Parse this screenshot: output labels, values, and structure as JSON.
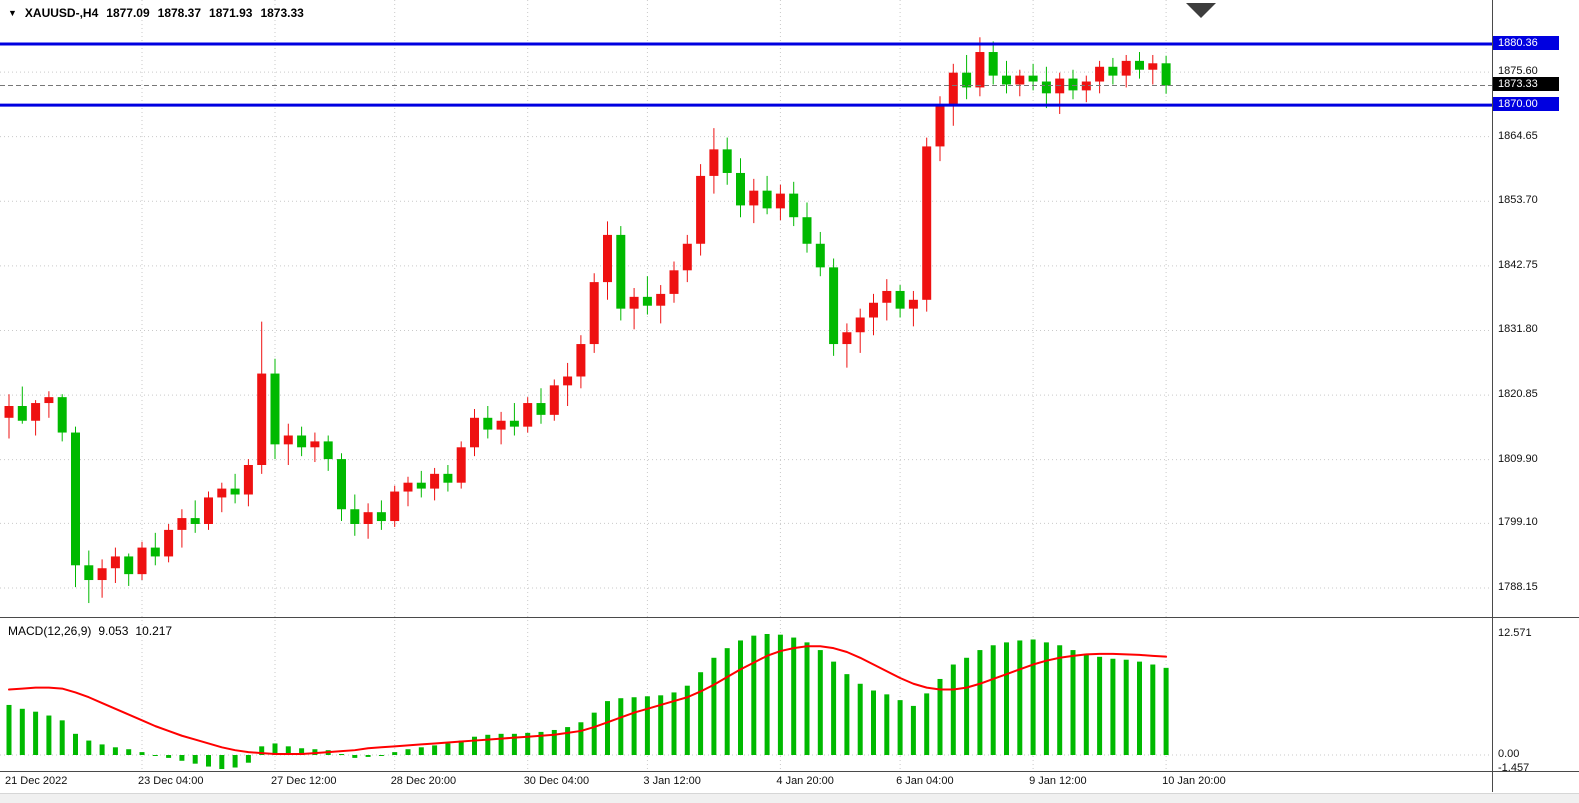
{
  "header": {
    "expand_icon": "▼",
    "symbol": "XAUUSD-,H4",
    "open": "1877.09",
    "high": "1878.37",
    "low": "1871.93",
    "close": "1873.33"
  },
  "indicator_header": {
    "name": "MACD(12,26,9)",
    "main_value": "9.053",
    "signal_value": "10.217"
  },
  "price_axis": {
    "tick_labels": [
      1875.6,
      1864.65,
      1853.7,
      1842.75,
      1831.8,
      1820.85,
      1809.9,
      1799.1,
      1788.15
    ],
    "level_labels": [
      {
        "text": "1880.36",
        "price": 1880.36
      },
      {
        "text": "1870.00",
        "price": 1870.0
      }
    ],
    "current_price_label": {
      "text": "1873.33",
      "price": 1873.33
    }
  },
  "macd_axis": {
    "max_label": "12.571",
    "max": 12.571,
    "zero_label": "0.00",
    "zero": 0,
    "min_label": "-1.457",
    "min": -1.457
  },
  "colors": {
    "up": "#ee1111",
    "down": "#00b900",
    "histogram": "#00b900",
    "signal": "#ff0000",
    "level_line": "#0000e0",
    "level_bg": "#0000e0",
    "current_bg": "#000000",
    "grid": "#c9c9c9"
  },
  "chart_data": {
    "type": "candlestick",
    "symbol": "XAUUSD-",
    "timeframe": "H4",
    "title": "XAUUSD-,H4 1877.09 1878.37 1871.93 1873.33",
    "price_axis_range": [
      1788.15,
      1880.36
    ],
    "horizontal_levels": [
      1880.36,
      1870.0
    ],
    "current_price": 1873.33,
    "x_labels": [
      {
        "label": "21 Dec 2022",
        "candle": 0
      },
      {
        "label": "23 Dec 04:00",
        "candle": 10
      },
      {
        "label": "27 Dec 12:00",
        "candle": 20
      },
      {
        "label": "28 Dec 20:00",
        "candle": 29
      },
      {
        "label": "30 Dec 04:00",
        "candle": 39
      },
      {
        "label": "3 Jan 12:00",
        "candle": 48
      },
      {
        "label": "4 Jan 20:00",
        "candle": 58
      },
      {
        "label": "6 Jan 04:00",
        "candle": 67
      },
      {
        "label": "9 Jan 12:00",
        "candle": 77
      },
      {
        "label": "10 Jan 20:00",
        "candle": 87
      }
    ],
    "candles": [
      [
        1817.0,
        1821.0,
        1813.5,
        1819.0
      ],
      [
        1819.0,
        1822.3,
        1816.0,
        1816.5
      ],
      [
        1816.5,
        1820.0,
        1814.0,
        1819.5
      ],
      [
        1819.5,
        1821.5,
        1817.0,
        1820.5
      ],
      [
        1820.5,
        1821.0,
        1813.0,
        1814.5
      ],
      [
        1814.5,
        1815.5,
        1788.3,
        1792.0
      ],
      [
        1792.0,
        1794.5,
        1785.6,
        1789.5
      ],
      [
        1789.5,
        1793.0,
        1786.5,
        1791.5
      ],
      [
        1791.5,
        1795.0,
        1789.0,
        1793.5
      ],
      [
        1793.5,
        1794.0,
        1788.5,
        1790.5
      ],
      [
        1790.5,
        1796.0,
        1789.5,
        1795.0
      ],
      [
        1795.0,
        1797.5,
        1792.0,
        1793.5
      ],
      [
        1793.5,
        1799.0,
        1792.5,
        1798.0
      ],
      [
        1798.0,
        1801.5,
        1795.0,
        1800.0
      ],
      [
        1800.0,
        1803.0,
        1797.5,
        1799.0
      ],
      [
        1799.0,
        1804.5,
        1798.0,
        1803.5
      ],
      [
        1803.5,
        1806.0,
        1801.0,
        1805.0
      ],
      [
        1805.0,
        1807.5,
        1802.5,
        1804.0
      ],
      [
        1804.0,
        1810.0,
        1802.0,
        1809.0
      ],
      [
        1809.0,
        1833.3,
        1807.5,
        1824.5
      ],
      [
        1824.5,
        1827.0,
        1810.0,
        1812.5
      ],
      [
        1812.5,
        1816.0,
        1809.0,
        1814.0
      ],
      [
        1814.0,
        1815.5,
        1810.5,
        1812.0
      ],
      [
        1812.0,
        1814.5,
        1809.5,
        1813.0
      ],
      [
        1813.0,
        1814.0,
        1808.0,
        1810.0
      ],
      [
        1810.0,
        1811.0,
        1799.5,
        1801.5
      ],
      [
        1801.5,
        1804.0,
        1797.0,
        1799.0
      ],
      [
        1799.0,
        1802.5,
        1796.5,
        1801.0
      ],
      [
        1801.0,
        1803.0,
        1798.0,
        1799.5
      ],
      [
        1799.5,
        1805.5,
        1798.5,
        1804.5
      ],
      [
        1804.5,
        1807.0,
        1802.0,
        1806.0
      ],
      [
        1806.0,
        1808.0,
        1803.5,
        1805.0
      ],
      [
        1805.0,
        1808.5,
        1803.0,
        1807.5
      ],
      [
        1807.5,
        1809.0,
        1804.5,
        1806.0
      ],
      [
        1806.0,
        1813.0,
        1805.0,
        1812.0
      ],
      [
        1812.0,
        1818.5,
        1810.5,
        1817.0
      ],
      [
        1817.0,
        1819.0,
        1813.5,
        1815.0
      ],
      [
        1815.0,
        1818.0,
        1812.5,
        1816.5
      ],
      [
        1816.5,
        1819.5,
        1814.0,
        1815.5
      ],
      [
        1815.5,
        1820.5,
        1814.5,
        1819.5
      ],
      [
        1819.5,
        1822.0,
        1816.0,
        1817.5
      ],
      [
        1817.5,
        1823.5,
        1816.5,
        1822.5
      ],
      [
        1822.5,
        1826.3,
        1819.0,
        1824.0
      ],
      [
        1824.0,
        1831.0,
        1822.0,
        1829.5
      ],
      [
        1829.5,
        1841.5,
        1828.0,
        1840.0
      ],
      [
        1840.0,
        1850.3,
        1837.0,
        1848.0
      ],
      [
        1848.0,
        1849.5,
        1833.5,
        1835.5
      ],
      [
        1835.5,
        1839.0,
        1832.0,
        1837.5
      ],
      [
        1837.5,
        1841.0,
        1834.5,
        1836.0
      ],
      [
        1836.0,
        1839.5,
        1833.0,
        1838.0
      ],
      [
        1838.0,
        1843.5,
        1836.5,
        1842.0
      ],
      [
        1842.0,
        1848.0,
        1840.0,
        1846.5
      ],
      [
        1846.5,
        1860.0,
        1844.5,
        1858.0
      ],
      [
        1858.0,
        1866.1,
        1855.0,
        1862.5
      ],
      [
        1862.5,
        1864.5,
        1856.5,
        1858.5
      ],
      [
        1858.5,
        1861.0,
        1851.0,
        1853.0
      ],
      [
        1853.0,
        1857.5,
        1850.0,
        1855.5
      ],
      [
        1855.5,
        1858.0,
        1851.5,
        1852.5
      ],
      [
        1852.5,
        1856.5,
        1850.5,
        1855.0
      ],
      [
        1855.0,
        1857.0,
        1849.5,
        1851.0
      ],
      [
        1851.0,
        1853.5,
        1845.0,
        1846.5
      ],
      [
        1846.5,
        1848.5,
        1841.0,
        1842.5
      ],
      [
        1842.5,
        1844.0,
        1827.5,
        1829.5
      ],
      [
        1829.5,
        1833.0,
        1825.5,
        1831.5
      ],
      [
        1831.5,
        1835.5,
        1828.0,
        1834.0
      ],
      [
        1834.0,
        1838.0,
        1831.0,
        1836.5
      ],
      [
        1836.5,
        1840.5,
        1833.5,
        1838.5
      ],
      [
        1838.5,
        1839.5,
        1834.0,
        1835.5
      ],
      [
        1835.5,
        1838.5,
        1832.5,
        1837.0
      ],
      [
        1837.0,
        1864.5,
        1835.0,
        1863.0
      ],
      [
        1863.0,
        1871.5,
        1860.5,
        1870.0
      ],
      [
        1870.0,
        1877.0,
        1866.5,
        1875.5
      ],
      [
        1875.5,
        1878.5,
        1871.0,
        1873.0
      ],
      [
        1873.0,
        1881.5,
        1871.5,
        1879.0
      ],
      [
        1879.0,
        1880.8,
        1873.5,
        1875.0
      ],
      [
        1875.0,
        1877.5,
        1872.0,
        1873.5
      ],
      [
        1873.5,
        1876.0,
        1871.5,
        1875.0
      ],
      [
        1875.0,
        1877.0,
        1872.5,
        1874.0
      ],
      [
        1874.0,
        1876.5,
        1869.5,
        1872.0
      ],
      [
        1872.0,
        1875.5,
        1868.5,
        1874.5
      ],
      [
        1874.5,
        1876.0,
        1871.0,
        1872.5
      ],
      [
        1872.5,
        1875.0,
        1870.5,
        1874.0
      ],
      [
        1874.0,
        1877.5,
        1872.0,
        1876.5
      ],
      [
        1876.5,
        1878.0,
        1873.5,
        1875.0
      ],
      [
        1875.0,
        1878.5,
        1873.0,
        1877.5
      ],
      [
        1877.5,
        1879.0,
        1874.5,
        1876.0
      ],
      [
        1876.0,
        1878.5,
        1873.5,
        1877.09
      ],
      [
        1877.09,
        1878.37,
        1871.93,
        1873.33
      ]
    ],
    "indicators": [
      {
        "name": "MACD",
        "params": [
          12,
          26,
          9
        ],
        "last_main": 9.053,
        "last_signal": 10.217,
        "scale_max": 12.571,
        "scale_min": -1.457,
        "histogram": [
          5.2,
          4.8,
          4.5,
          4.1,
          3.6,
          2.2,
          1.5,
          1.1,
          0.8,
          0.6,
          0.3,
          0.0,
          -0.3,
          -0.6,
          -0.9,
          -1.2,
          -1.457,
          -1.3,
          -0.8,
          0.9,
          1.2,
          0.9,
          0.7,
          0.6,
          0.5,
          0.1,
          -0.3,
          -0.2,
          0.0,
          0.3,
          0.6,
          0.8,
          1.0,
          1.2,
          1.5,
          1.9,
          2.1,
          2.2,
          2.2,
          2.3,
          2.4,
          2.6,
          2.9,
          3.4,
          4.4,
          5.6,
          5.9,
          6.0,
          6.1,
          6.2,
          6.5,
          7.2,
          8.6,
          10.1,
          11.1,
          11.9,
          12.4,
          12.571,
          12.5,
          12.2,
          11.7,
          10.9,
          9.7,
          8.4,
          7.4,
          6.7,
          6.3,
          5.7,
          5.1,
          6.4,
          7.9,
          9.4,
          10.1,
          10.9,
          11.4,
          11.7,
          11.9,
          12.0,
          11.7,
          11.4,
          10.9,
          10.5,
          10.2,
          10.0,
          9.9,
          9.7,
          9.4,
          9.053
        ],
        "signal": [
          6.8,
          6.9,
          7.0,
          7.0,
          6.9,
          6.5,
          6.0,
          5.4,
          4.8,
          4.2,
          3.6,
          3.0,
          2.5,
          2.0,
          1.6,
          1.2,
          0.8,
          0.5,
          0.3,
          0.2,
          0.1,
          0.1,
          0.1,
          0.2,
          0.3,
          0.4,
          0.5,
          0.7,
          0.8,
          0.9,
          1.0,
          1.1,
          1.2,
          1.3,
          1.4,
          1.5,
          1.6,
          1.7,
          1.8,
          1.9,
          2.0,
          2.1,
          2.3,
          2.5,
          2.9,
          3.4,
          3.9,
          4.4,
          4.8,
          5.2,
          5.6,
          6.0,
          6.6,
          7.3,
          8.1,
          8.9,
          9.6,
          10.3,
          10.8,
          11.1,
          11.3,
          11.3,
          11.1,
          10.7,
          10.1,
          9.4,
          8.7,
          8.0,
          7.4,
          7.0,
          6.8,
          6.8,
          7.0,
          7.4,
          7.9,
          8.4,
          8.9,
          9.4,
          9.8,
          10.1,
          10.3,
          10.45,
          10.5,
          10.5,
          10.45,
          10.4,
          10.3,
          10.217
        ]
      }
    ]
  }
}
